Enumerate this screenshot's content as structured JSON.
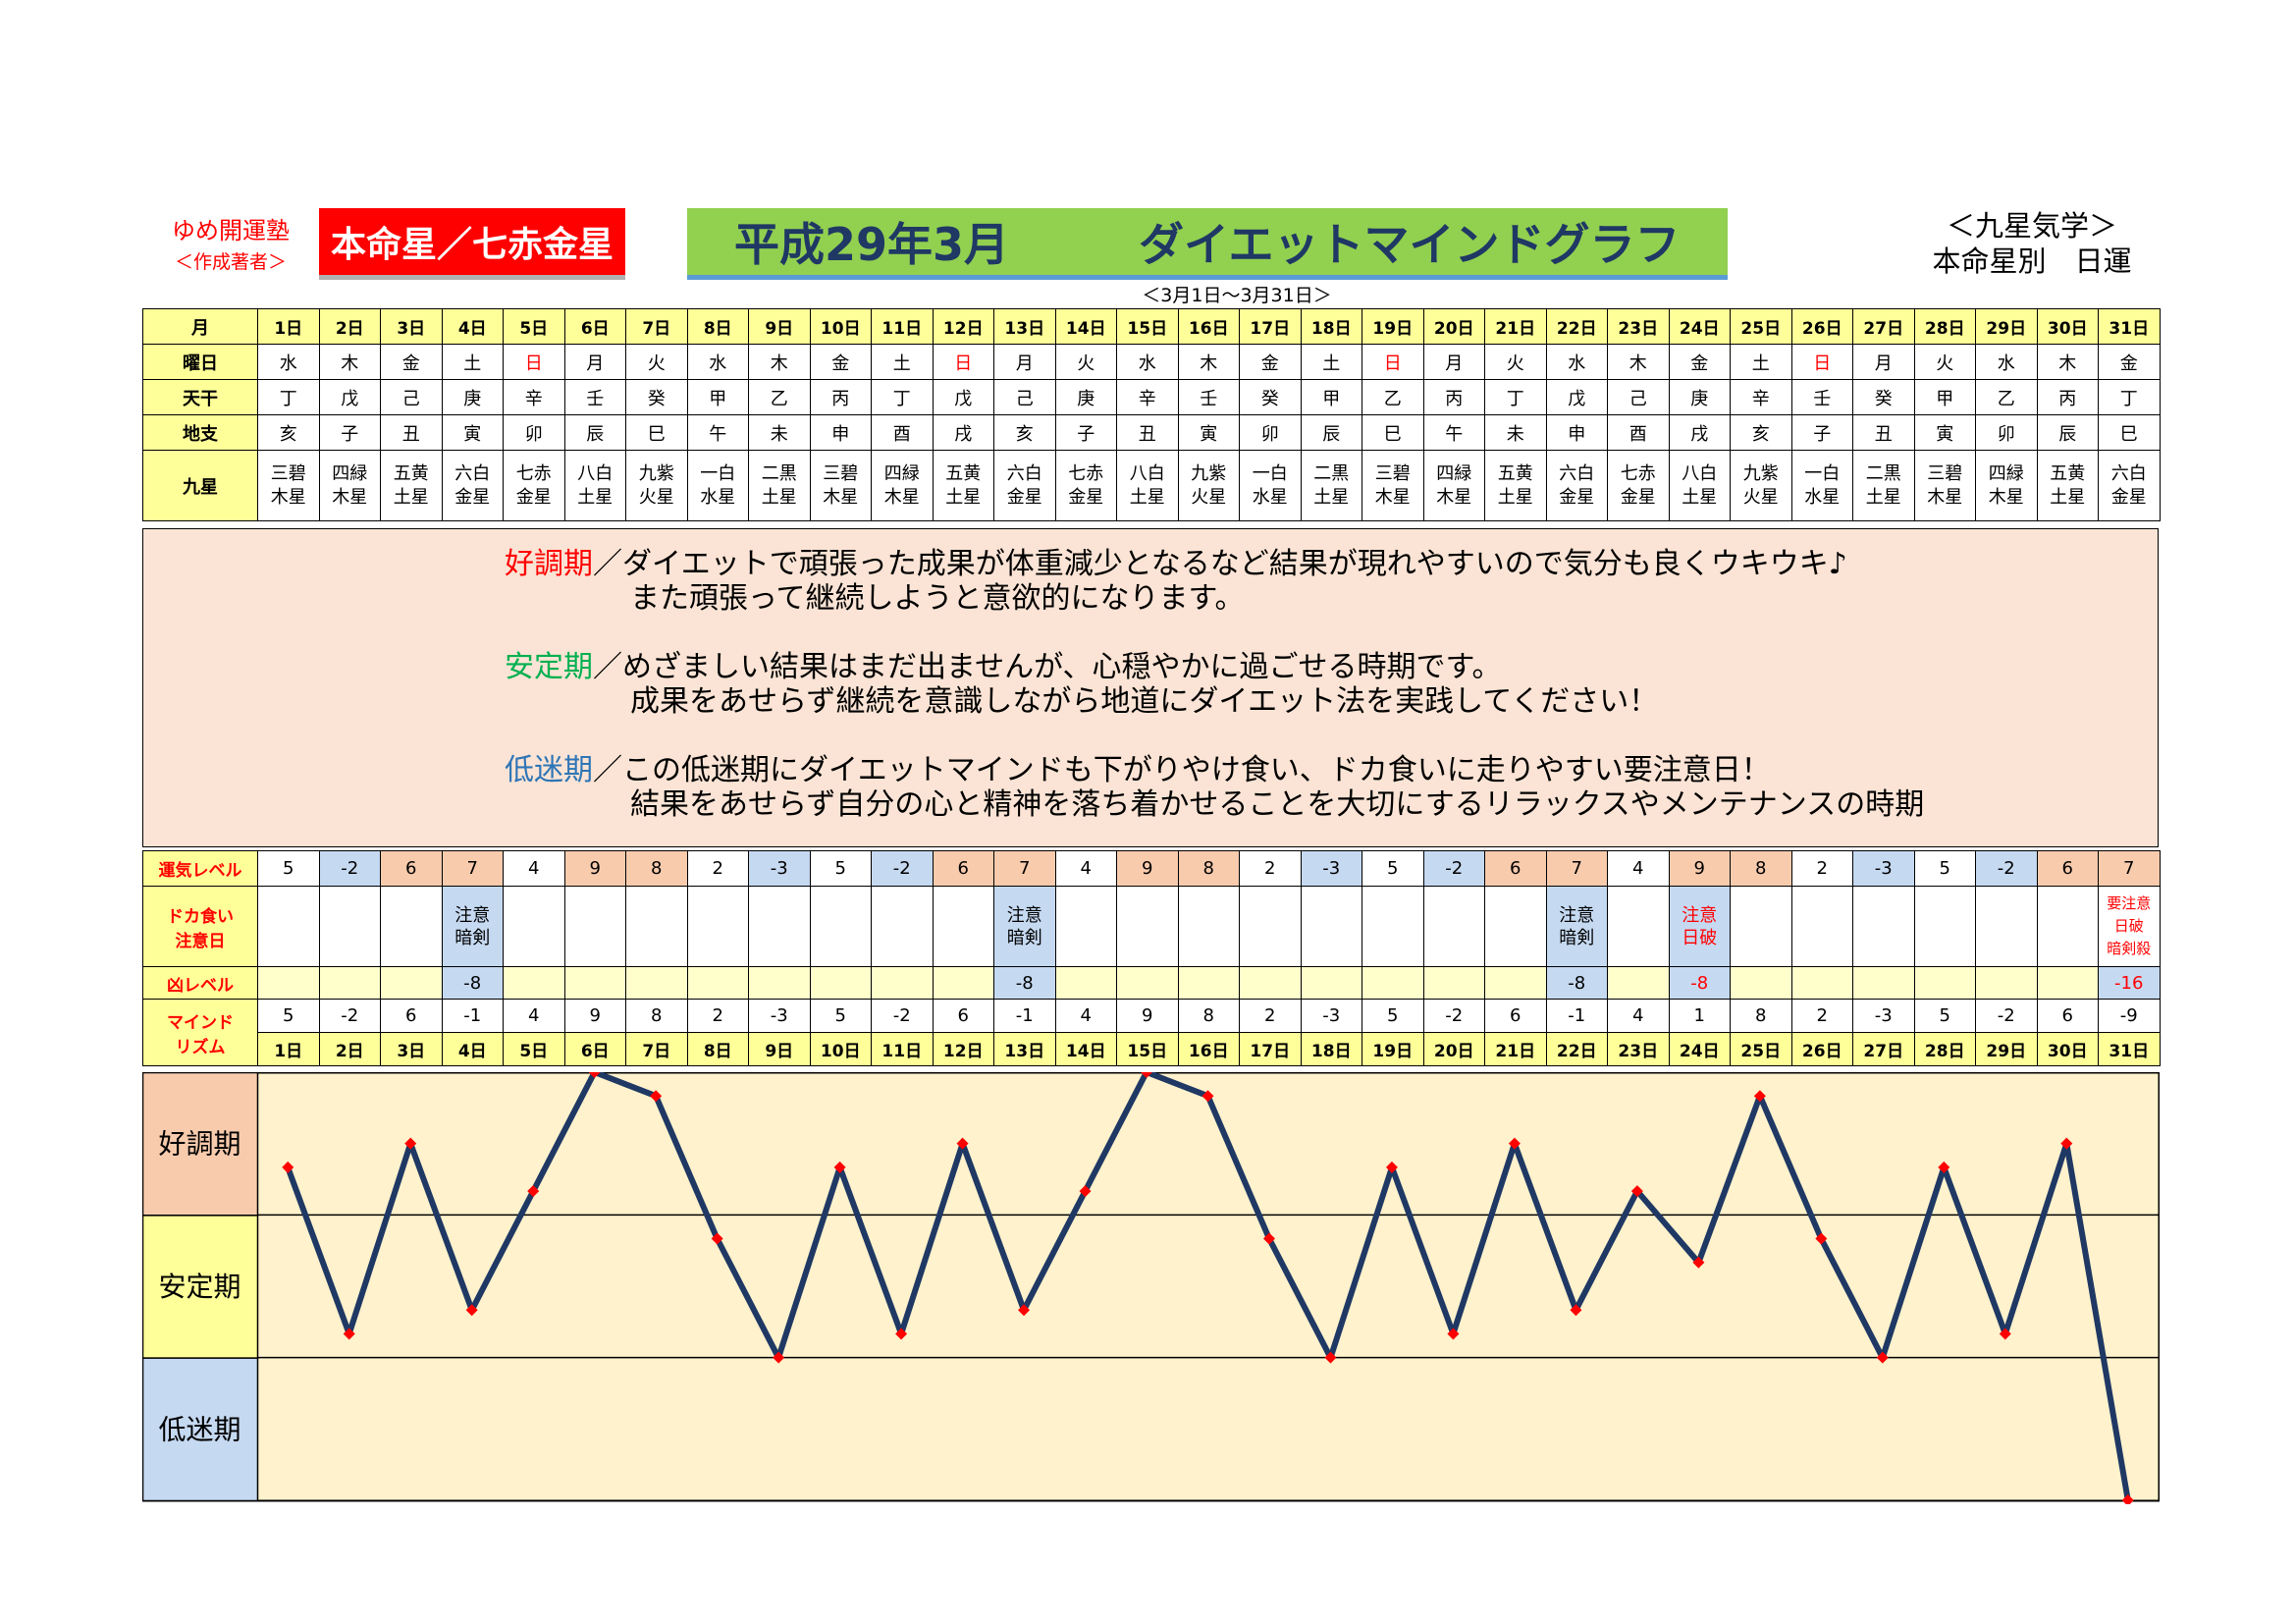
{
  "header": {
    "org_name": "ゆめ開運塾",
    "author": "＜作成著者＞",
    "honmei_star": "本命星／七赤金星",
    "title_date": "平成29年3月",
    "title_main": "ダイエットマインドグラフ",
    "category": "＜九星気学＞",
    "category_sub": "本命星別　日運",
    "range": "＜3月1日～3月31日＞"
  },
  "labels": {
    "month": "月",
    "weekday": "曜日",
    "tenkan": "天干",
    "chishi": "地支",
    "kyusei": "九星",
    "unki": "運気レベル",
    "dokagui": "ドカ食い注意日",
    "kyo": "凶レベル",
    "mind": "マインドリズム"
  },
  "days": [
    "1日",
    "2日",
    "3日",
    "4日",
    "5日",
    "6日",
    "7日",
    "8日",
    "9日",
    "10日",
    "11日",
    "12日",
    "13日",
    "14日",
    "15日",
    "16日",
    "17日",
    "18日",
    "19日",
    "20日",
    "21日",
    "22日",
    "23日",
    "24日",
    "25日",
    "26日",
    "27日",
    "28日",
    "29日",
    "30日",
    "31日"
  ],
  "weekdays": [
    "水",
    "木",
    "金",
    "土",
    "日",
    "月",
    "火",
    "水",
    "木",
    "金",
    "土",
    "日",
    "月",
    "火",
    "水",
    "木",
    "金",
    "土",
    "日",
    "月",
    "火",
    "水",
    "木",
    "金",
    "土",
    "日",
    "月",
    "火",
    "水",
    "木",
    "金"
  ],
  "tenkan": [
    "丁",
    "戊",
    "己",
    "庚",
    "辛",
    "壬",
    "癸",
    "甲",
    "乙",
    "丙",
    "丁",
    "戊",
    "己",
    "庚",
    "辛",
    "壬",
    "癸",
    "甲",
    "乙",
    "丙",
    "丁",
    "戊",
    "己",
    "庚",
    "辛",
    "壬",
    "癸",
    "甲",
    "乙",
    "丙",
    "丁"
  ],
  "chishi": [
    "亥",
    "子",
    "丑",
    "寅",
    "卯",
    "辰",
    "巳",
    "午",
    "未",
    "申",
    "酉",
    "戌",
    "亥",
    "子",
    "丑",
    "寅",
    "卯",
    "辰",
    "巳",
    "午",
    "未",
    "申",
    "酉",
    "戌",
    "亥",
    "子",
    "丑",
    "寅",
    "卯",
    "辰",
    "巳"
  ],
  "kyusei": [
    [
      "三碧",
      "木星"
    ],
    [
      "四緑",
      "木星"
    ],
    [
      "五黄",
      "土星"
    ],
    [
      "六白",
      "金星"
    ],
    [
      "七赤",
      "金星"
    ],
    [
      "八白",
      "土星"
    ],
    [
      "九紫",
      "火星"
    ],
    [
      "一白",
      "水星"
    ],
    [
      "二黒",
      "土星"
    ],
    [
      "三碧",
      "木星"
    ],
    [
      "四緑",
      "木星"
    ],
    [
      "五黄",
      "土星"
    ],
    [
      "六白",
      "金星"
    ],
    [
      "七赤",
      "金星"
    ],
    [
      "八白",
      "土星"
    ],
    [
      "九紫",
      "火星"
    ],
    [
      "一白",
      "水星"
    ],
    [
      "二黒",
      "土星"
    ],
    [
      "三碧",
      "木星"
    ],
    [
      "四緑",
      "木星"
    ],
    [
      "五黄",
      "土星"
    ],
    [
      "六白",
      "金星"
    ],
    [
      "七赤",
      "金星"
    ],
    [
      "八白",
      "土星"
    ],
    [
      "九紫",
      "火星"
    ],
    [
      "一白",
      "水星"
    ],
    [
      "二黒",
      "土星"
    ],
    [
      "三碧",
      "木星"
    ],
    [
      "四緑",
      "木星"
    ],
    [
      "五黄",
      "土星"
    ],
    [
      "六白",
      "金星"
    ]
  ],
  "descriptions": [
    {
      "period": "好調期",
      "line1": "／ダイエットで頑張った成果が体重減少となるなど結果が現れやすいので気分も良くウキウキ♪",
      "line2": "また頑張って継続しようと意欲的になります。",
      "color": "#ff0000"
    },
    {
      "period": "安定期",
      "line1": "／めざましい結果はまだ出ませんが、心穏やかに過ごせる時期です。",
      "line2": "成果をあせらず継続を意識しながら地道にダイエット法を実践してください！",
      "color": "#00b050"
    },
    {
      "period": "低迷期",
      "line1": "／この低迷期にダイエットマインドも下がりやけ食い、ドカ食いに走りやすい要注意日！",
      "line2": "結果をあせらず自分の心と精神を落ち着かせることを大切にするリラックスやメンテナンスの時期",
      "color": "#2e75b6"
    }
  ],
  "unki": [
    5,
    -2,
    6,
    7,
    4,
    9,
    8,
    2,
    -3,
    5,
    -2,
    6,
    7,
    4,
    9,
    8,
    2,
    -3,
    5,
    -2,
    6,
    7,
    4,
    9,
    8,
    2,
    -3,
    5,
    -2,
    6,
    7
  ],
  "dokagui": [
    [],
    [],
    [],
    [
      "注意",
      "暗剣"
    ],
    [],
    [],
    [],
    [],
    [],
    [],
    [],
    [],
    [
      "注意",
      "暗剣"
    ],
    [],
    [],
    [],
    [],
    [],
    [],
    [],
    [],
    [
      "注意",
      "暗剣"
    ],
    [],
    [
      "注意",
      "日破"
    ],
    [],
    [],
    [],
    [],
    [],
    [],
    [
      "要注意",
      "日破",
      "暗剣殺"
    ]
  ],
  "kyo": [
    null,
    null,
    null,
    -8,
    null,
    null,
    null,
    null,
    null,
    null,
    null,
    null,
    -8,
    null,
    null,
    null,
    null,
    null,
    null,
    null,
    null,
    -8,
    null,
    -8,
    null,
    null,
    null,
    null,
    null,
    null,
    -16
  ],
  "chart_data": {
    "type": "line",
    "categories": [
      "1日",
      "2日",
      "3日",
      "4日",
      "5日",
      "6日",
      "7日",
      "8日",
      "9日",
      "10日",
      "11日",
      "12日",
      "13日",
      "14日",
      "15日",
      "16日",
      "17日",
      "18日",
      "19日",
      "20日",
      "21日",
      "22日",
      "23日",
      "24日",
      "25日",
      "26日",
      "27日",
      "28日",
      "29日",
      "30日",
      "31日"
    ],
    "series": [
      {
        "values": [
          5,
          -2,
          6,
          -1,
          4,
          9,
          8,
          2,
          -3,
          5,
          -2,
          6,
          -1,
          4,
          9,
          8,
          2,
          -3,
          5,
          -2,
          6,
          -1,
          4,
          1,
          8,
          2,
          -3,
          5,
          -2,
          6,
          -9
        ]
      }
    ],
    "bands": [
      "好調期",
      "安定期",
      "低迷期"
    ],
    "ylim": [
      -9,
      9
    ],
    "line_color": "#1f3864",
    "marker_color": "#ff0000",
    "background": "#fff2cc"
  }
}
